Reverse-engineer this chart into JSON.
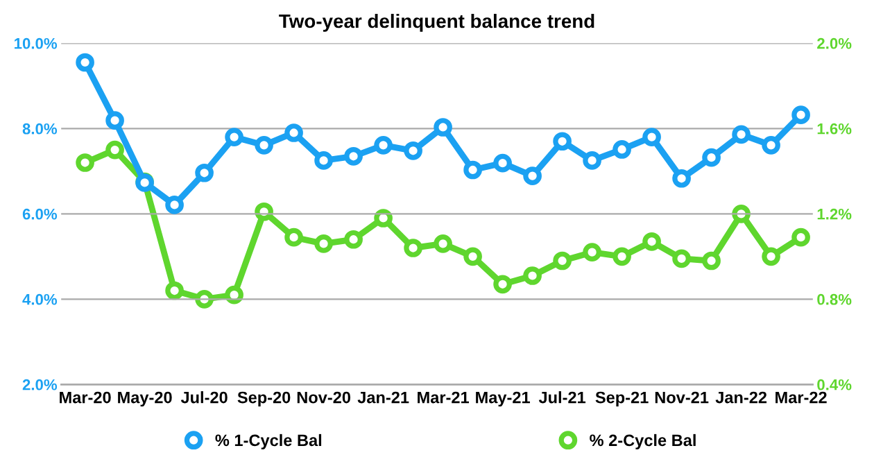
{
  "chart_data": {
    "type": "line",
    "title": "Two-year delinquent balance trend",
    "categories": [
      "Mar-20",
      null,
      "May-20",
      null,
      "Jul-20",
      null,
      "Sep-20",
      null,
      "Nov-20",
      null,
      "Jan-21",
      null,
      "Mar-21",
      null,
      "May-21",
      null,
      "Jul-21",
      null,
      "Sep-21",
      null,
      "Nov-21",
      null,
      "Jan-22",
      null,
      "Mar-22"
    ],
    "series": [
      {
        "name": "% 1-Cycle Bal",
        "color": "#1ba1f2",
        "values": [
          9.55,
          8.19,
          6.73,
          6.21,
          6.96,
          7.8,
          7.61,
          7.9,
          7.25,
          7.35,
          7.61,
          7.48,
          8.03,
          7.03,
          7.19,
          6.89,
          7.7,
          7.25,
          7.51,
          7.8,
          6.83,
          7.32,
          7.86,
          7.61,
          8.32
        ]
      },
      {
        "name": "% 2-Cycle Bal",
        "color": "#5fd62e",
        "axis": "y2",
        "values": [
          1.44,
          1.5,
          1.35,
          0.84,
          0.8,
          0.82,
          1.21,
          1.09,
          1.06,
          1.08,
          1.18,
          1.04,
          1.06,
          1.0,
          0.87,
          0.91,
          0.98,
          1.02,
          1.0,
          1.07,
          0.99,
          0.98,
          1.2,
          1.0,
          1.09
        ]
      }
    ],
    "ylim": [
      2,
      10
    ],
    "yticks": [
      {
        "value": 2,
        "label": "2.0%"
      },
      {
        "value": 4,
        "label": "4.0%"
      },
      {
        "value": 6,
        "label": "6.0%"
      },
      {
        "value": 8,
        "label": "8.0%"
      },
      {
        "value": 10,
        "label": "10.0%"
      }
    ],
    "y2lim": [
      0.4,
      2.0
    ],
    "y2ticks": [
      {
        "value": 0.4,
        "label": "0.4%"
      },
      {
        "value": 0.8,
        "label": "0.8%"
      },
      {
        "value": 1.2,
        "label": "1.2%"
      },
      {
        "value": 1.6,
        "label": "1.6%"
      },
      {
        "value": 2.0,
        "label": "2.0%"
      }
    ],
    "grid": "y",
    "legend": "bottom",
    "marker": "circle",
    "line_style": "solid"
  }
}
